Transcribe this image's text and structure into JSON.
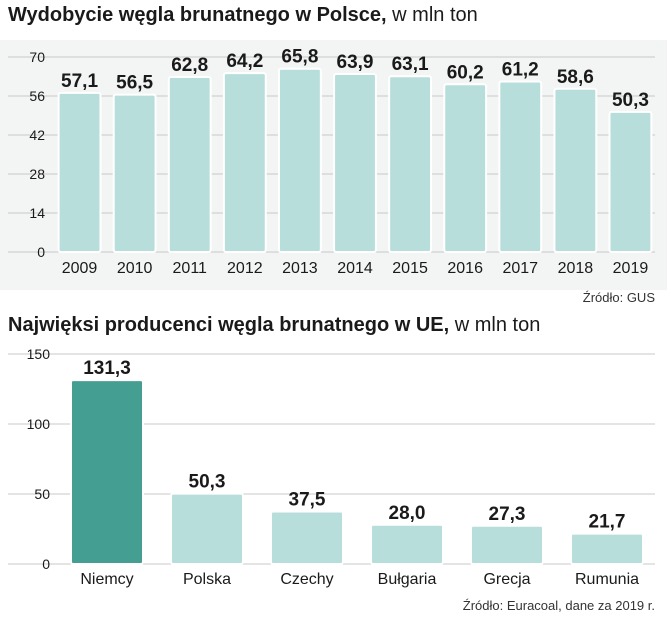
{
  "charts": [
    {
      "title_bold": "Wydobycie węgla brunatnego w Polsce,",
      "title_unit": " w mln ton",
      "source": "Źródło: GUS"
    },
    {
      "title_bold": "Najwięksi producenci węgla brunatnego w UE,",
      "title_unit": " w mln ton",
      "source": "Źródło: Euracoal, dane za 2019 r."
    }
  ],
  "colors": {
    "bar": "#b8dedb",
    "bar_highlight": "#449e92",
    "bar_stroke": "#ffffff",
    "grid": "#c9c9c9",
    "text": "#1a1a1a"
  },
  "chart_data": [
    {
      "type": "bar",
      "title": "Wydobycie węgla brunatnego w Polsce, w mln ton",
      "categories": [
        "2009",
        "2010",
        "2011",
        "2012",
        "2013",
        "2014",
        "2015",
        "2016",
        "2017",
        "2018",
        "2019"
      ],
      "values": [
        57.1,
        56.5,
        62.8,
        64.2,
        65.8,
        63.9,
        63.1,
        60.2,
        61.2,
        58.6,
        50.3
      ],
      "value_labels": [
        "57,1",
        "56,5",
        "62,8",
        "64,2",
        "65,8",
        "63,9",
        "63,1",
        "60,2",
        "61,2",
        "58,6",
        "50,3"
      ],
      "yticks": [
        0,
        14,
        28,
        42,
        56,
        70
      ],
      "ylim": [
        0,
        70
      ],
      "xlabel": "",
      "ylabel": "",
      "grid": true
    },
    {
      "type": "bar",
      "title": "Najwięksi producenci węgla brunatnego w UE, w mln ton",
      "categories": [
        "Niemcy",
        "Polska",
        "Czechy",
        "Bułgaria",
        "Grecja",
        "Rumunia"
      ],
      "values": [
        131.3,
        50.3,
        37.5,
        28.0,
        27.3,
        21.7
      ],
      "value_labels": [
        "131,3",
        "50,3",
        "37,5",
        "28,0",
        "27,3",
        "21,7"
      ],
      "highlight_index": 0,
      "yticks": [
        0,
        50,
        100,
        150
      ],
      "ylim": [
        0,
        150
      ],
      "xlabel": "",
      "ylabel": "",
      "grid": true
    }
  ]
}
